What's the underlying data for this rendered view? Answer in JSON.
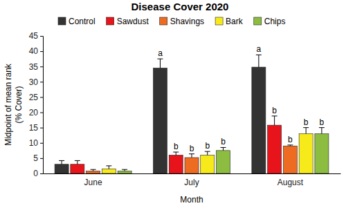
{
  "chart_data": {
    "type": "bar",
    "title": "Disease Cover 2020",
    "xlabel": "Month",
    "ylabel": [
      "Midpoint of mean rank",
      "(% Cover)"
    ],
    "categories": [
      "June",
      "July",
      "August"
    ],
    "series": [
      {
        "name": "Control",
        "color": "#333333",
        "values": [
          3,
          34.5,
          34.8
        ],
        "errors": [
          1.2,
          3,
          4
        ],
        "annotations": [
          null,
          "a",
          "a"
        ]
      },
      {
        "name": "Sawdust",
        "color": "#e8141b",
        "values": [
          3,
          6,
          15.8
        ],
        "errors": [
          1.2,
          1,
          3
        ],
        "annotations": [
          null,
          "b",
          "b"
        ]
      },
      {
        "name": "Shavings",
        "color": "#ee6c22",
        "values": [
          0.8,
          5.2,
          9
        ],
        "errors": [
          0.5,
          1.2,
          0.3
        ],
        "annotations": [
          null,
          "b",
          "b"
        ]
      },
      {
        "name": "Bark",
        "color": "#f7ea1a",
        "values": [
          1.5,
          6,
          13
        ],
        "errors": [
          1,
          1.2,
          2
        ],
        "annotations": [
          null,
          "b",
          "b"
        ]
      },
      {
        "name": "Chips",
        "color": "#8cbd40",
        "values": [
          0.8,
          7.5,
          13
        ],
        "errors": [
          0.5,
          1,
          2
        ],
        "annotations": [
          null,
          "b",
          "b"
        ]
      }
    ],
    "ylim": [
      0,
      45
    ],
    "yticks": [
      0,
      5,
      10,
      15,
      20,
      25,
      30,
      35,
      40,
      45
    ],
    "grid": false,
    "legend": "top"
  }
}
